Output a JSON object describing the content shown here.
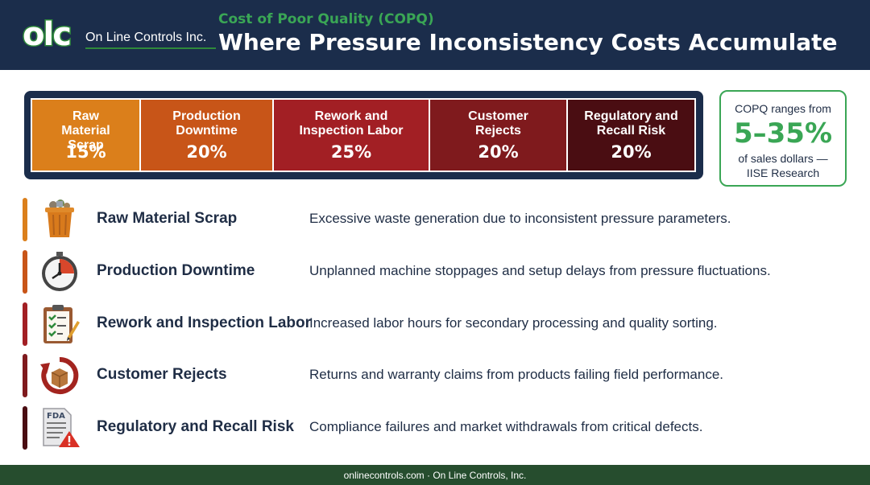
{
  "header": {
    "logo_mark": "olc",
    "logo_text": "On Line Controls Inc.",
    "subtitle": "Cost of Poor Quality (COPQ)",
    "title": "Where Pressure Inconsistency Costs Accumulate",
    "background_color": "#1b2d4b",
    "accent_color": "#3aa655"
  },
  "cost_breakdown": {
    "segments": [
      {
        "label": "Raw Material Scrap",
        "percent": "15%",
        "color": "#db7f1b"
      },
      {
        "label": "Production Downtime",
        "percent": "20%",
        "color": "#c85518"
      },
      {
        "label": "Rework and Inspection Labor",
        "percent": "25%",
        "color": "#a21f24"
      },
      {
        "label": "Customer Rejects",
        "percent": "20%",
        "color": "#7f1a1d"
      },
      {
        "label": "Regulatory and Recall Risk",
        "percent": "20%",
        "color": "#4a0d12"
      }
    ]
  },
  "stat": {
    "top": "COPQ ranges from",
    "value": "5–35%",
    "bottom_line1": "of sales dollars —",
    "bottom_line2": "IISE Research"
  },
  "items": [
    {
      "icon": "trash-bin-icon",
      "name": "Raw Material Scrap",
      "description": "Excessive waste generation due to inconsistent pressure parameters.",
      "accent_color": "#db7f1b"
    },
    {
      "icon": "clock-icon",
      "name": "Production Downtime",
      "description": "Unplanned machine stoppages and setup delays from pressure fluctuations.",
      "accent_color": "#c85518"
    },
    {
      "icon": "clipboard-checklist-icon",
      "name": "Rework and Inspection Labor",
      "description": "Increased labor hours for secondary processing and quality sorting.",
      "accent_color": "#a21f24"
    },
    {
      "icon": "return-package-icon",
      "name": "Customer Rejects",
      "description": "Returns and warranty claims from products failing field performance.",
      "accent_color": "#7f1a1d"
    },
    {
      "icon": "fda-warning-document-icon",
      "name": "Regulatory and Recall Risk",
      "description": "Compliance failures and market withdrawals from critical defects.",
      "accent_color": "#4a0d12"
    }
  ],
  "fda_label": "FDA",
  "footer": {
    "text": "onlinecontrols.com · On Line Controls, Inc."
  }
}
